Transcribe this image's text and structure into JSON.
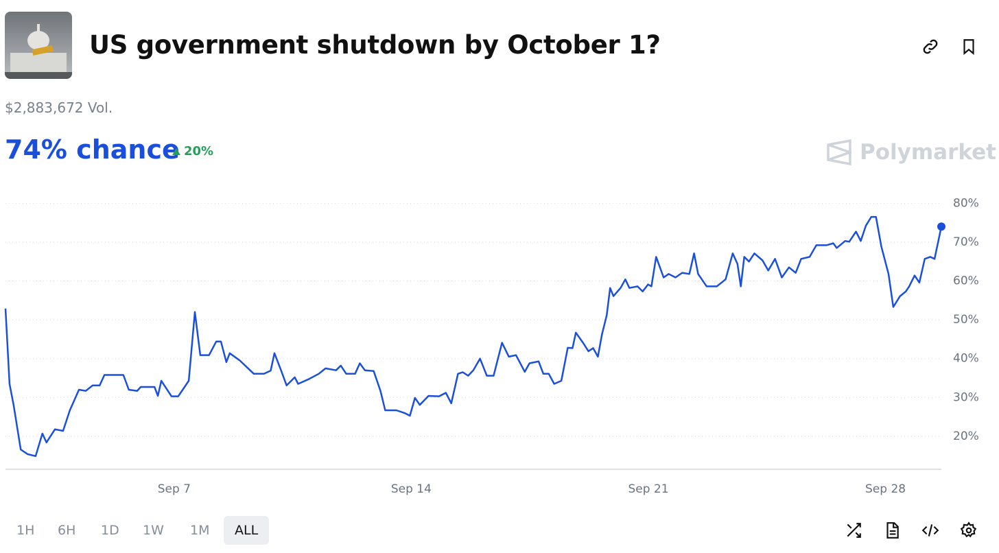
{
  "header": {
    "title": "US government shutdown by October 1?",
    "volume": "$2,883,672 Vol.",
    "chance": "74% chance",
    "change": "20%"
  },
  "brand": "Polymarket",
  "time_ranges": [
    "1H",
    "6H",
    "1D",
    "1W",
    "1M",
    "ALL"
  ],
  "selected_range": "ALL",
  "chart_data": {
    "type": "line",
    "color": "#1a4fdb",
    "grid": true,
    "x": [
      2.02,
      2.14,
      2.26,
      2.47,
      2.67,
      2.91,
      3.11,
      3.23,
      3.48,
      3.72,
      3.92,
      4.19,
      4.39,
      4.59,
      4.8,
      4.94,
      5.5,
      5.66,
      5.91,
      6.01,
      6.42,
      6.52,
      6.62,
      6.92,
      7.12,
      7.43,
      7.61,
      7.77,
      8.03,
      8.24,
      8.38,
      8.54,
      8.64,
      8.94,
      9.35,
      9.65,
      9.85,
      9.96,
      10.16,
      10.32,
      10.56,
      10.66,
      10.97,
      11.27,
      11.47,
      11.78,
      11.92,
      12.08,
      12.34,
      12.48,
      12.63,
      12.89,
      13.09,
      13.23,
      13.56,
      13.8,
      13.96,
      14.11,
      14.25,
      14.51,
      14.82,
      15.02,
      15.18,
      15.38,
      15.52,
      15.68,
      15.83,
      16.03,
      16.23,
      16.43,
      16.68,
      16.88,
      17.09,
      17.35,
      17.49,
      17.76,
      17.9,
      18.06,
      18.22,
      18.43,
      18.62,
      18.76,
      18.86,
      19.07,
      19.23,
      19.37,
      19.51,
      19.63,
      19.77,
      19.87,
      19.97,
      20.18,
      20.32,
      20.44,
      20.68,
      20.83,
      20.99,
      21.09,
      21.23,
      21.45,
      21.6,
      21.8,
      22.0,
      22.21,
      22.35,
      22.47,
      22.72,
      23.02,
      23.28,
      23.49,
      23.63,
      23.73,
      23.83,
      23.97,
      24.13,
      24.37,
      24.54,
      24.74,
      24.94,
      25.15,
      25.35,
      25.51,
      25.76,
      25.96,
      26.26,
      26.46,
      26.56,
      26.81,
      26.93,
      27.13,
      27.27,
      27.42,
      27.58,
      27.72,
      27.88,
      28.09,
      28.23,
      28.43,
      28.6,
      28.7,
      28.86,
      29.0,
      29.16,
      29.32,
      29.45,
      29.65
    ],
    "values": [
      52.9,
      33.5,
      28.1,
      16.6,
      15.4,
      14.9,
      20.7,
      18.4,
      21.8,
      21.4,
      26.7,
      32.0,
      31.7,
      33.1,
      33.1,
      35.8,
      35.8,
      32.0,
      31.7,
      32.7,
      32.7,
      30.4,
      34.3,
      30.3,
      30.3,
      34.3,
      52.0,
      40.9,
      40.9,
      44.4,
      44.4,
      39.1,
      41.4,
      39.5,
      36.1,
      36.1,
      36.9,
      41.4,
      36.9,
      33.1,
      35.2,
      33.5,
      34.7,
      36.1,
      37.5,
      37.0,
      38.2,
      36.1,
      36.1,
      38.8,
      37.0,
      36.8,
      31.7,
      26.7,
      26.7,
      26.0,
      25.3,
      29.9,
      28.1,
      30.4,
      30.3,
      31.2,
      28.5,
      36.1,
      36.5,
      35.6,
      37.0,
      40.0,
      35.6,
      35.6,
      44.1,
      40.5,
      40.9,
      36.6,
      38.8,
      39.3,
      36.1,
      36.1,
      33.5,
      34.3,
      42.8,
      42.7,
      46.7,
      44.1,
      41.9,
      42.7,
      40.5,
      46.2,
      51.2,
      58.2,
      56.1,
      58.2,
      60.4,
      58.2,
      58.6,
      57.3,
      59.1,
      58.6,
      66.2,
      60.9,
      61.8,
      60.9,
      62.1,
      61.8,
      67.1,
      61.8,
      58.6,
      58.6,
      60.4,
      67.1,
      64.4,
      58.6,
      66.2,
      65.0,
      67.1,
      65.3,
      62.7,
      65.7,
      60.9,
      63.5,
      62.1,
      65.7,
      66.2,
      69.2,
      69.2,
      69.7,
      68.5,
      70.3,
      70.1,
      72.7,
      70.3,
      74.2,
      76.5,
      76.5,
      68.8,
      61.8,
      53.3,
      56.1,
      57.3,
      58.6,
      61.4,
      59.6,
      65.7,
      66.2,
      65.7,
      74
    ],
    "xlim": [
      2.02,
      29.65
    ],
    "xticks": [
      {
        "value": 7,
        "label": "Sep 7"
      },
      {
        "value": 14,
        "label": "Sep 14"
      },
      {
        "value": 21,
        "label": "Sep 21"
      },
      {
        "value": 28,
        "label": "Sep 28"
      }
    ],
    "ylim": [
      11.5,
      82
    ],
    "yticks": [
      {
        "value": 20,
        "label": "20%"
      },
      {
        "value": 30,
        "label": "30%"
      },
      {
        "value": 40,
        "label": "40%"
      },
      {
        "value": 50,
        "label": "50%"
      },
      {
        "value": 60,
        "label": "60%"
      },
      {
        "value": 70,
        "label": "70%"
      },
      {
        "value": 80,
        "label": "80%"
      }
    ]
  }
}
